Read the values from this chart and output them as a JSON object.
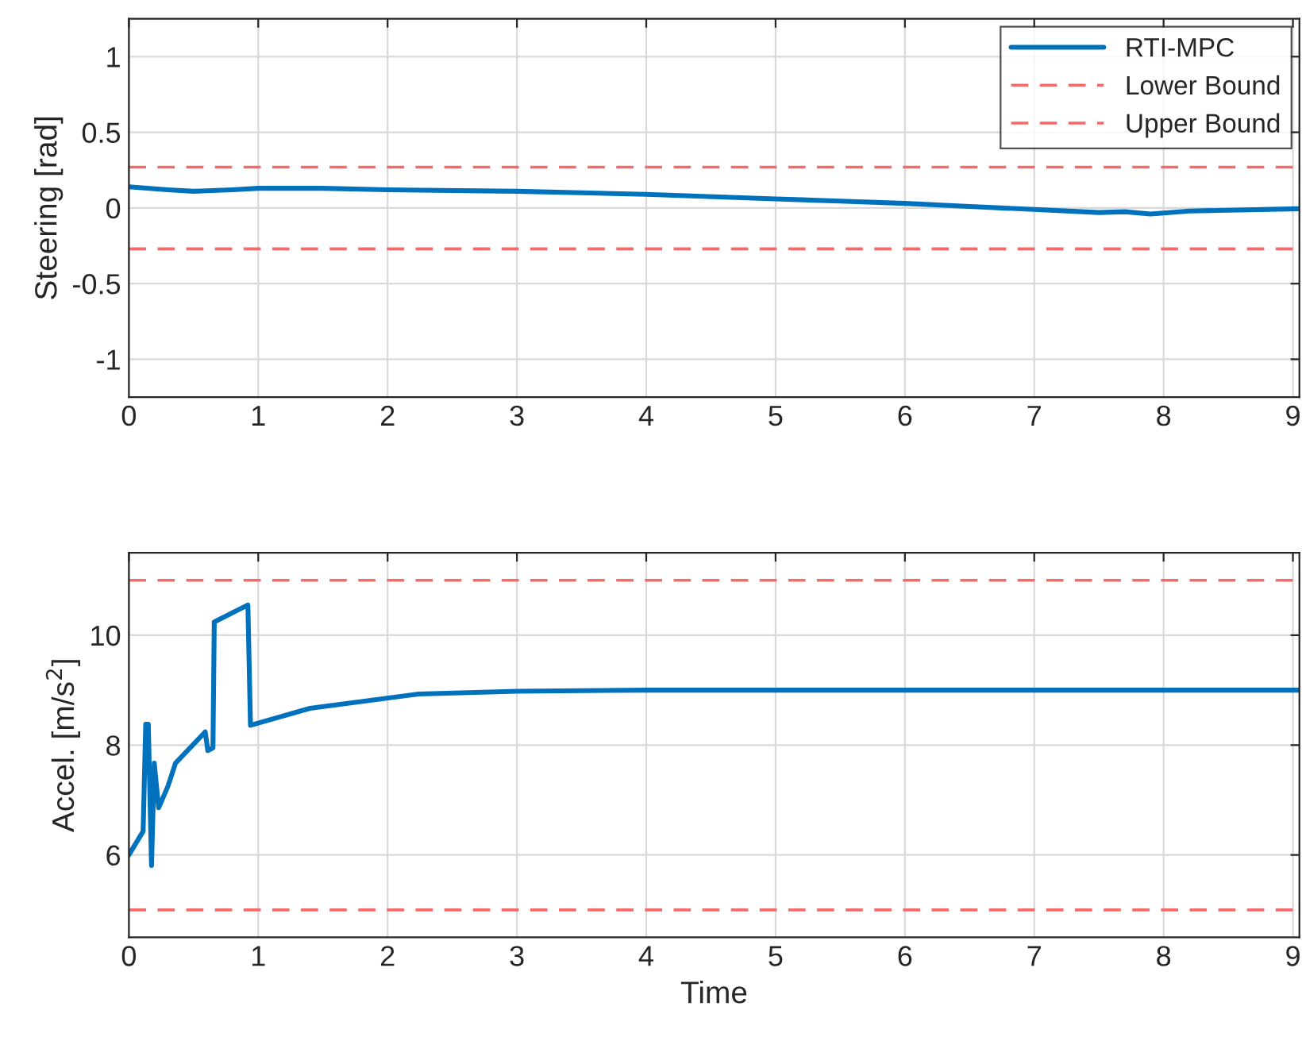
{
  "chart_data": [
    {
      "type": "line",
      "ylabel": "Steering [rad]",
      "xlim": [
        0,
        9.05
      ],
      "ylim": [
        -1.25,
        1.25
      ],
      "xticks": [
        0,
        1,
        2,
        3,
        4,
        5,
        6,
        7,
        8,
        9
      ],
      "yticks": [
        -1,
        -0.5,
        0,
        0.5,
        1
      ],
      "grid": true,
      "legend": "top right",
      "series": [
        {
          "name": "RTI-MPC",
          "color": "#0072bd",
          "line_style": "solid",
          "x": [
            0,
            0.3,
            0.5,
            0.8,
            1.0,
            1.5,
            2,
            3,
            4,
            5,
            5.5,
            6,
            6.5,
            7,
            7.5,
            7.7,
            7.9,
            8.2,
            8.5,
            9.05
          ],
          "values": [
            0.14,
            0.12,
            0.11,
            0.12,
            0.13,
            0.13,
            0.12,
            0.11,
            0.09,
            0.06,
            0.045,
            0.03,
            0.01,
            -0.01,
            -0.03,
            -0.025,
            -0.04,
            -0.02,
            -0.015,
            -0.005
          ]
        },
        {
          "name": "Lower Bound",
          "color": "#f46a6a",
          "line_style": "dashed",
          "x": [
            0,
            9.05
          ],
          "values": [
            -0.27,
            -0.27
          ]
        },
        {
          "name": "Upper Bound",
          "color": "#f46a6a",
          "line_style": "dashed",
          "x": [
            0,
            9.05
          ],
          "values": [
            0.27,
            0.27
          ]
        }
      ]
    },
    {
      "type": "line",
      "xlabel": "Time",
      "ylabel": "Accel. [m/s$^{2}$]",
      "xlim": [
        0,
        9.05
      ],
      "ylim": [
        4.5,
        11.5
      ],
      "xticks": [
        0,
        1,
        2,
        3,
        4,
        5,
        6,
        7,
        8,
        9
      ],
      "yticks": [
        6,
        8,
        10
      ],
      "grid": true,
      "series": [
        {
          "color": "#0072bd",
          "line_style": "solid",
          "x": [
            0,
            0.11,
            0.13,
            0.15,
            0.175,
            0.196,
            0.23,
            0.3,
            0.32,
            0.36,
            0.59,
            0.61,
            0.65,
            0.66,
            0.92,
            0.94,
            1.4,
            2.24,
            3,
            4,
            5,
            6,
            7,
            8,
            9.05
          ],
          "values": [
            6.0,
            6.43,
            8.38,
            8.38,
            5.81,
            7.67,
            6.86,
            7.24,
            7.38,
            7.67,
            8.24,
            7.9,
            7.95,
            10.24,
            10.55,
            8.36,
            8.67,
            8.93,
            8.98,
            9.0,
            9.0,
            9.0,
            9.0,
            9.0,
            9.0
          ]
        },
        {
          "color": "#f46a6a",
          "line_style": "dashed",
          "x": [
            0,
            9.05
          ],
          "values": [
            5,
            5
          ]
        },
        {
          "color": "#f46a6a",
          "line_style": "dashed",
          "x": [
            0,
            9.05
          ],
          "values": [
            11,
            11
          ]
        }
      ]
    }
  ]
}
